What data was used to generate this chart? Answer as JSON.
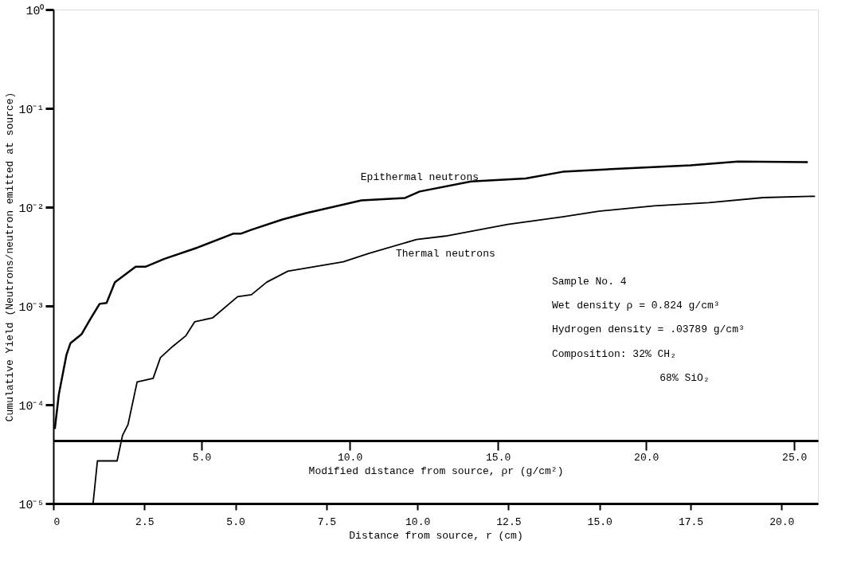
{
  "chart_data": {
    "type": "line",
    "xlabel": "Distance from source, r (cm)",
    "ylabel": "Cumulative Yield (Neutrons/neutron emitted at source)",
    "x2label": "Modified distance from source, ρr (g/cm²)",
    "log": true,
    "grid": false,
    "marker": "none",
    "line_style": "solid",
    "xlim": [
      0,
      21
    ],
    "xticks": [
      0,
      {
        "value": 2.5,
        "label": "2.5"
      },
      {
        "value": 5,
        "label": "5.0"
      },
      {
        "value": 7.5,
        "label": "7.5"
      },
      {
        "value": 10,
        "label": "10.0"
      },
      {
        "value": 12.5,
        "label": "12.5"
      },
      {
        "value": 15,
        "label": "15.0"
      },
      {
        "value": 17.5,
        "label": "17.5"
      },
      {
        "value": 20,
        "label": "20.0"
      }
    ],
    "x2lim": [
      0,
      25.8
    ],
    "x2ticks": [
      {
        "value": 5,
        "label": "5.0"
      },
      {
        "value": 10,
        "label": "10.0"
      },
      {
        "value": 15,
        "label": "15.0"
      },
      {
        "value": 20,
        "label": "20.0"
      },
      {
        "value": 25,
        "label": "25.0"
      }
    ],
    "ylim": [
      1e-05,
      1
    ],
    "yticks": [
      {
        "value": 1e-05,
        "label": "10⁻⁵"
      },
      {
        "value": 0.0001,
        "label": "10⁻⁴"
      },
      {
        "value": 0.001,
        "label": "10⁻³"
      },
      {
        "value": 0.01,
        "label": "10⁻²"
      },
      {
        "value": 0.1,
        "label": "10⁻¹"
      },
      {
        "value": 1,
        "label": "10⁰"
      }
    ],
    "series": [
      {
        "name": "Epithermal neutrons",
        "color": "#000000",
        "x": [
          0.04,
          0.15,
          0.36,
          0.47,
          0.78,
          1.0,
          1.27,
          1.46,
          1.69,
          2.26,
          2.54,
          3.05,
          3.96,
          4.95,
          5.16,
          5.44,
          6.29,
          6.94,
          8.46,
          9.66,
          10.06,
          11.47,
          12.97,
          13.99,
          16.0,
          17.5,
          18.8,
          20.72
        ],
        "values": [
          5.7e-05,
          0.000127,
          0.00032,
          0.00042,
          0.00052,
          0.00072,
          0.00105,
          0.00107,
          0.00174,
          0.0025,
          0.0025,
          0.003,
          0.0039,
          0.0054,
          0.0054,
          0.0059,
          0.0075,
          0.0087,
          0.0117,
          0.0124,
          0.0144,
          0.0182,
          0.0195,
          0.0228,
          0.025,
          0.0265,
          0.029,
          0.0285
        ]
      },
      {
        "name": "Thermal neutrons",
        "color": "#000000",
        "x": [
          1.09,
          1.21,
          1.75,
          1.9,
          2.05,
          2.3,
          2.74,
          2.94,
          3.28,
          3.64,
          3.88,
          4.38,
          5.06,
          5.44,
          5.86,
          6.44,
          7.96,
          8.66,
          9.97,
          10.77,
          12.48,
          13.99,
          14.98,
          16.5,
          18.0,
          19.5,
          20.92
        ],
        "values": [
          1e-05,
          2.7e-05,
          2.7e-05,
          4.9e-05,
          6.3e-05,
          0.00017,
          0.000185,
          0.0003,
          0.00039,
          0.0005,
          0.00069,
          0.00076,
          0.00124,
          0.0013,
          0.00174,
          0.00225,
          0.0028,
          0.0034,
          0.0047,
          0.0051,
          0.0067,
          0.008,
          0.0091,
          0.0103,
          0.0111,
          0.0125,
          0.0129
        ]
      }
    ],
    "annotations": [
      "Sample No. 4",
      "Wet density ρ = 0.824 g/cm³",
      "Hydrogen density = .03789 g/cm³",
      "Composition: 32% CH₂",
      "68% SiO₂"
    ]
  }
}
